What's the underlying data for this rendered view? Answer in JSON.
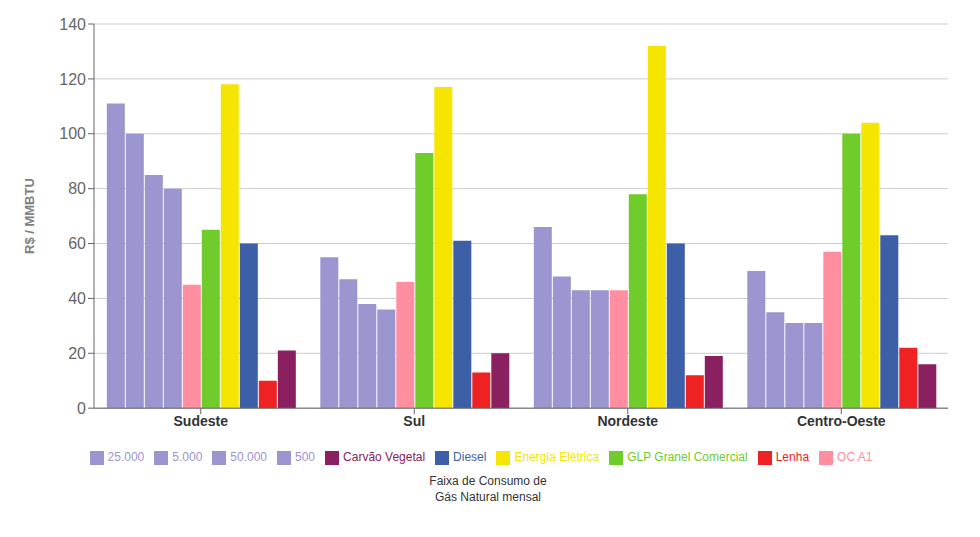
{
  "chart_data": {
    "type": "bar",
    "categories": [
      "Sudeste",
      "Sul",
      "Nordeste",
      "Centro-Oeste"
    ],
    "series": [
      {
        "name": "500",
        "color": "#9b95d0",
        "values": [
          111,
          55,
          66,
          50
        ]
      },
      {
        "name": "5.000",
        "color": "#9b95d0",
        "values": [
          100,
          47,
          48,
          35
        ]
      },
      {
        "name": "25.000",
        "color": "#9b95d0",
        "values": [
          85,
          38,
          43,
          31
        ]
      },
      {
        "name": "50.000",
        "color": "#9b95d0",
        "values": [
          80,
          36,
          43,
          31
        ]
      },
      {
        "name": "OC A1",
        "color": "#ff8fa0",
        "values": [
          45,
          46,
          43,
          57
        ]
      },
      {
        "name": "GLP Granel Comercial",
        "color": "#6fcc2a",
        "values": [
          65,
          93,
          78,
          100
        ]
      },
      {
        "name": "Energia Elétrica",
        "color": "#f5e500",
        "values": [
          118,
          117,
          132,
          104
        ]
      },
      {
        "name": "Diesel",
        "color": "#3d5fa8",
        "values": [
          60,
          61,
          60,
          63
        ]
      },
      {
        "name": "Lenha",
        "color": "#ee2222",
        "values": [
          10,
          13,
          12,
          22
        ]
      },
      {
        "name": "Carvão Vegetal",
        "color": "#8b2060",
        "values": [
          21,
          20,
          19,
          16
        ]
      }
    ],
    "ylabel": "R$ / MMBTU",
    "ylim": [
      0,
      140
    ],
    "yticks": [
      0,
      20,
      40,
      60,
      80,
      100,
      120,
      140
    ],
    "grid": true,
    "legend": "bottom",
    "annotations": [
      "Faixa de Consumo de\nGás Natural mensal"
    ]
  }
}
